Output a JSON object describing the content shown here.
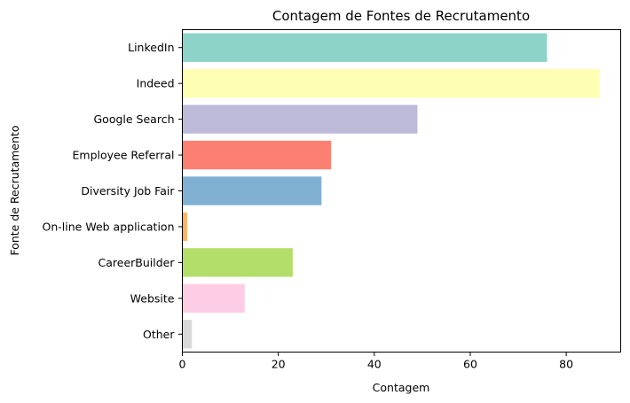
{
  "chart_data": {
    "type": "bar",
    "orientation": "horizontal",
    "title": "Contagem de Fontes de Recrutamento",
    "xlabel": "Contagem",
    "ylabel": "Fonte de Recrutamento",
    "xlim": [
      0,
      91.35
    ],
    "xticks": [
      0,
      20,
      40,
      60,
      80
    ],
    "grid": false,
    "categories": [
      "LinkedIn",
      "Indeed",
      "Google Search",
      "Employee Referral",
      "Diversity Job Fair",
      "On-line Web application",
      "CareerBuilder",
      "Website",
      "Other"
    ],
    "values": [
      76,
      87,
      49,
      31,
      29,
      1,
      23,
      13,
      2
    ],
    "colors": [
      "#8dd3c7",
      "#ffffb3",
      "#bebada",
      "#fb8072",
      "#80b1d3",
      "#fdb462",
      "#b3de69",
      "#fccde5",
      "#d9d9d9"
    ]
  }
}
